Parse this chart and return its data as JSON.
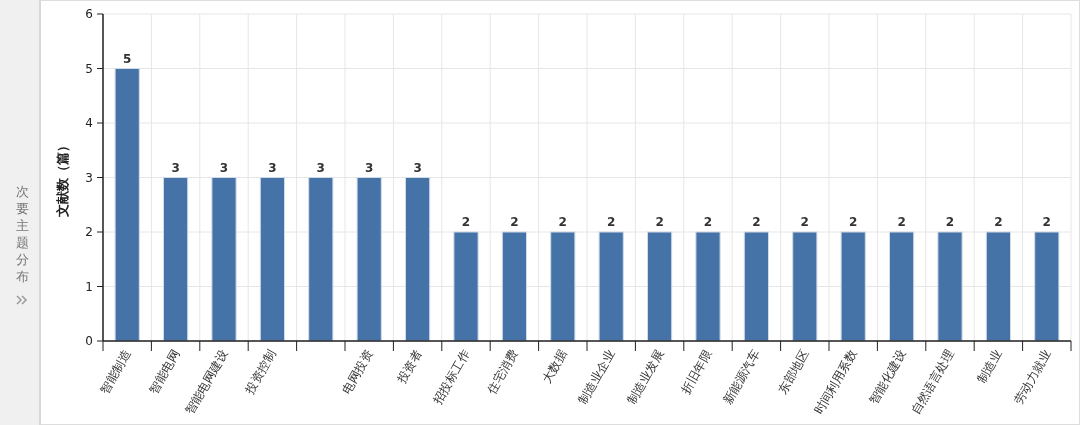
{
  "chart_data": {
    "type": "bar",
    "ylabel": "文献数（篇）",
    "annotations": [
      "次要主题分布"
    ],
    "categories": [
      "智能制造",
      "智能电网",
      "智能电网建设",
      "投资控制",
      null,
      "电网投资",
      "投资者",
      "招投标工作",
      "住宅消费",
      "大数据",
      "制造业企业",
      "制造业发展",
      "折旧年限",
      "新能源汽车",
      "东部地区",
      "时间利用系数",
      "智能化建设",
      "自然语言处理",
      "制造业",
      "劳动力就业"
    ],
    "values": [
      5,
      3,
      3,
      3,
      3,
      3,
      3,
      2,
      2,
      2,
      2,
      2,
      2,
      2,
      2,
      2,
      2,
      2,
      2,
      2
    ],
    "color": "#4673a7",
    "ylim": [
      0,
      6
    ],
    "yticks": [
      0,
      1,
      2,
      3,
      4,
      5,
      6
    ],
    "grid": true,
    "data_labels": true
  }
}
